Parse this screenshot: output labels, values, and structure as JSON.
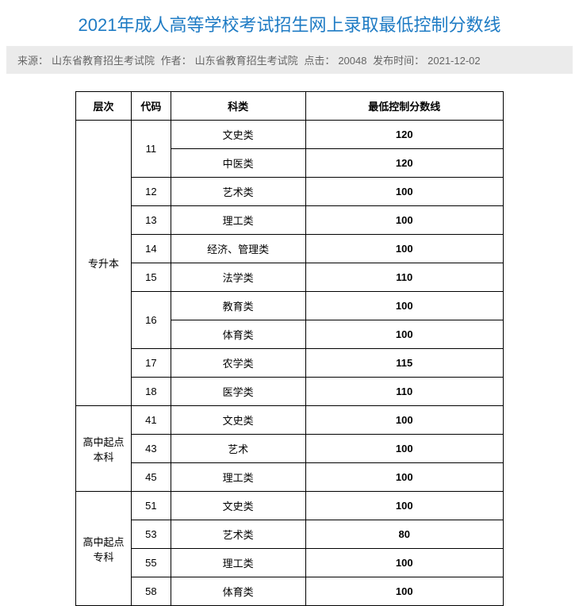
{
  "title": "2021年成人高等学校考试招生网上录取最低控制分数线",
  "meta": {
    "source_label": "来源：",
    "source_value": "山东省教育招生考试院",
    "author_label": "作者：",
    "author_value": "山东省教育招生考试院",
    "clicks_label": "点击：",
    "clicks_value": "20048",
    "date_label": "发布时间：",
    "date_value": "2021-12-02"
  },
  "table": {
    "headers": {
      "level": "层次",
      "code": "代码",
      "category": "科类",
      "score": "最低控制分数线"
    },
    "levels": {
      "zsb": "专升本",
      "gqb": "高中起点本科",
      "gqz": "高中起点专科"
    },
    "codes": {
      "c11": "11",
      "c12": "12",
      "c13": "13",
      "c14": "14",
      "c15": "15",
      "c16": "16",
      "c17": "17",
      "c18": "18",
      "c41": "41",
      "c43": "43",
      "c45": "45",
      "c51": "51",
      "c53": "53",
      "c55": "55",
      "c58": "58"
    },
    "categories": {
      "wenshi": "文史类",
      "zhongyi": "中医类",
      "yishu": "艺术类",
      "ligong": "理工类",
      "jingguan": "经济、管理类",
      "faxue": "法学类",
      "jiaoyu": "教育类",
      "tiyu": "体育类",
      "nongxue": "农学类",
      "yixue": "医学类",
      "yishu2": "艺术"
    },
    "scores": {
      "s1": "120",
      "s2": "120",
      "s3": "100",
      "s4": "100",
      "s5": "100",
      "s6": "110",
      "s7": "100",
      "s8": "100",
      "s9": "115",
      "s10": "110",
      "s11": "100",
      "s12": "100",
      "s13": "100",
      "s14": "100",
      "s15": "80",
      "s16": "100",
      "s17": "100"
    }
  },
  "style": {
    "title_color": "#1e7bc4",
    "meta_bg": "#ebebeb",
    "meta_text": "#666666",
    "border_color": "#000000",
    "background_color": "#ffffff",
    "title_fontsize": 22,
    "meta_fontsize": 13,
    "table_fontsize": 13
  }
}
